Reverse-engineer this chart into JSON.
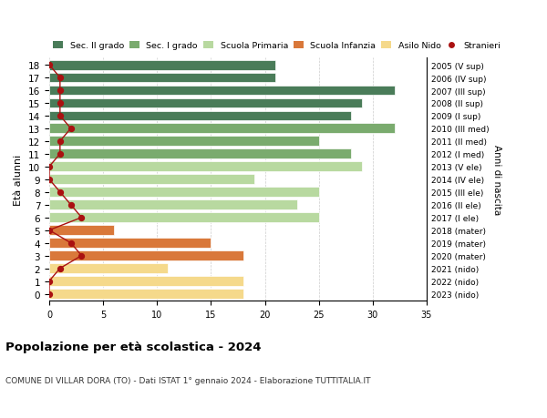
{
  "ages": [
    18,
    17,
    16,
    15,
    14,
    13,
    12,
    11,
    10,
    9,
    8,
    7,
    6,
    5,
    4,
    3,
    2,
    1,
    0
  ],
  "right_labels": [
    "2005 (V sup)",
    "2006 (IV sup)",
    "2007 (III sup)",
    "2008 (II sup)",
    "2009 (I sup)",
    "2010 (III med)",
    "2011 (II med)",
    "2012 (I med)",
    "2013 (V ele)",
    "2014 (IV ele)",
    "2015 (III ele)",
    "2016 (II ele)",
    "2017 (I ele)",
    "2018 (mater)",
    "2019 (mater)",
    "2020 (mater)",
    "2021 (nido)",
    "2022 (nido)",
    "2023 (nido)"
  ],
  "bar_values": [
    21,
    21,
    32,
    29,
    28,
    32,
    25,
    28,
    29,
    19,
    25,
    23,
    25,
    6,
    15,
    18,
    11,
    18,
    18
  ],
  "bar_colors": [
    "#4a7c59",
    "#4a7c59",
    "#4a7c59",
    "#4a7c59",
    "#4a7c59",
    "#7aab6e",
    "#7aab6e",
    "#7aab6e",
    "#b8d9a0",
    "#b8d9a0",
    "#b8d9a0",
    "#b8d9a0",
    "#b8d9a0",
    "#d9783a",
    "#d9783a",
    "#d9783a",
    "#f5d98b",
    "#f5d98b",
    "#f5d98b"
  ],
  "dot_values": [
    0,
    1,
    1,
    1,
    1,
    2,
    1,
    1,
    0,
    0,
    1,
    2,
    3,
    0,
    2,
    3,
    1,
    0,
    0
  ],
  "dot_color": "#aa1111",
  "title": "Popolazione per età scolastica - 2024",
  "subtitle": "COMUNE DI VILLAR DORA (TO) - Dati ISTAT 1° gennaio 2024 - Elaborazione TUTTITALIA.IT",
  "ylabel": "Età alunni",
  "right_ylabel": "Anni di nascita",
  "xlim": [
    0,
    35
  ],
  "xticks": [
    0,
    5,
    10,
    15,
    20,
    25,
    30,
    35
  ],
  "legend_labels": [
    "Sec. II grado",
    "Sec. I grado",
    "Scuola Primaria",
    "Scuola Infanzia",
    "Asilo Nido",
    "Stranieri"
  ],
  "legend_colors": [
    "#4a7c59",
    "#7aab6e",
    "#b8d9a0",
    "#d9783a",
    "#f5d98b",
    "#aa1111"
  ],
  "bg_color": "#ffffff",
  "grid_color": "#cccccc",
  "bar_height": 0.78
}
